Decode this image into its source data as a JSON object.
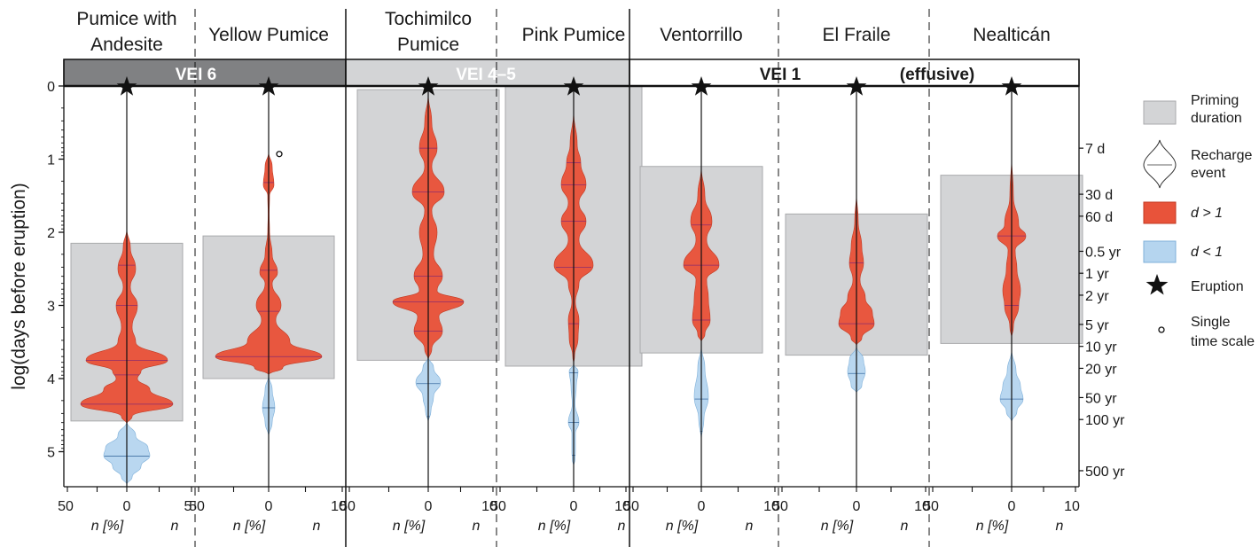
{
  "chart_data": {
    "type": "violin",
    "y_axis": {
      "label": "log(days before eruption)",
      "range": [
        0,
        5.45
      ],
      "ticks": [
        0,
        1,
        2,
        3,
        4,
        5
      ],
      "right_ticks": [
        {
          "label": "7 d",
          "value": 0.85
        },
        {
          "label": "30 d",
          "value": 1.48
        },
        {
          "label": "60 d",
          "value": 1.78
        },
        {
          "label": "0.5 yr",
          "value": 2.26
        },
        {
          "label": "1 yr",
          "value": 2.56
        },
        {
          "label": "2 yr",
          "value": 2.86
        },
        {
          "label": "5 yr",
          "value": 3.26
        },
        {
          "label": "10 yr",
          "value": 3.56
        },
        {
          "label": "20 yr",
          "value": 3.86
        },
        {
          "label": "50 yr",
          "value": 4.26
        },
        {
          "label": "100 yr",
          "value": 4.56
        },
        {
          "label": "500 yr",
          "value": 5.26
        }
      ]
    },
    "x_axis_label_left": "n [%]",
    "x_axis_label_right": "n",
    "groups": [
      {
        "label": "VEI 6",
        "style": "dark"
      },
      {
        "label": "VEI 4–5",
        "style": "light"
      },
      {
        "label": "VEI 1",
        "extra_label": "(effusive)",
        "style": "white"
      }
    ],
    "legend": {
      "priming": "Priming duration",
      "recharge": "Recharge event",
      "d_gt": "d > 1",
      "d_lt": "d < 1",
      "eruption": "Eruption",
      "single": "Single time scale"
    },
    "colors": {
      "d_gt_1": "#e8533a",
      "d_lt_1": "#b5d5ef",
      "priming": "#d3d4d6",
      "vei6": "#808183",
      "vei45": "#d3d4d6"
    },
    "panels": [
      {
        "name": "Pumice with Andesite",
        "title_lines": [
          "Pumice with",
          "Andesite"
        ],
        "ticks_left": [
          "50"
        ],
        "ticks_right": [
          "5"
        ],
        "priming": [
          2.15,
          4.58
        ],
        "red": [
          [
            1.95,
            0
          ],
          [
            2.2,
            2
          ],
          [
            2.5,
            5
          ],
          [
            2.75,
            2
          ],
          [
            3.0,
            6
          ],
          [
            3.3,
            3
          ],
          [
            3.5,
            5
          ],
          [
            3.75,
            23
          ],
          [
            3.9,
            8
          ],
          [
            4.0,
            6
          ],
          [
            4.15,
            13
          ],
          [
            4.35,
            26
          ],
          [
            4.52,
            3
          ],
          [
            4.62,
            0
          ]
        ],
        "red_lines": [
          2.45,
          3.0,
          3.75,
          3.95,
          4.35
        ],
        "blue": [
          [
            4.58,
            0
          ],
          [
            4.78,
            5
          ],
          [
            4.95,
            12
          ],
          [
            5.05,
            13
          ],
          [
            5.2,
            8
          ],
          [
            5.35,
            3
          ],
          [
            5.45,
            0
          ]
        ],
        "blue_lines": [
          5.06
        ],
        "single": null
      },
      {
        "name": "Yellow Pumice",
        "title_lines": [
          "Yellow Pumice"
        ],
        "ticks_left": [
          "50"
        ],
        "ticks_right": [
          "10"
        ],
        "priming": [
          2.05,
          4.0
        ],
        "red": [
          [
            0.9,
            0
          ],
          [
            1.1,
            2
          ],
          [
            1.35,
            3
          ],
          [
            1.5,
            0.5
          ],
          [
            1.75,
            0.3
          ],
          [
            2.0,
            0.5
          ],
          [
            2.3,
            2
          ],
          [
            2.55,
            5
          ],
          [
            2.7,
            2
          ],
          [
            3.0,
            7
          ],
          [
            3.2,
            4
          ],
          [
            3.5,
            12
          ],
          [
            3.7,
            30
          ],
          [
            3.85,
            8
          ],
          [
            3.95,
            0
          ]
        ],
        "red_lines": [
          1.32,
          2.52,
          3.08,
          3.7
        ],
        "blue": [
          [
            3.95,
            0
          ],
          [
            4.15,
            2
          ],
          [
            4.4,
            3.5
          ],
          [
            4.6,
            2
          ],
          [
            4.8,
            0
          ]
        ],
        "blue_lines": [
          4.4
        ],
        "single": 0.93
      },
      {
        "name": "Tochimilco Pumice",
        "title_lines": [
          "Tochimilco",
          "Pumice"
        ],
        "ticks_left": [
          "50"
        ],
        "ticks_right": [
          "10"
        ],
        "priming": [
          0.05,
          3.75
        ],
        "red": [
          [
            0.1,
            0
          ],
          [
            0.5,
            2
          ],
          [
            0.85,
            5
          ],
          [
            1.1,
            2
          ],
          [
            1.45,
            9
          ],
          [
            1.7,
            2
          ],
          [
            2.0,
            5
          ],
          [
            2.3,
            3
          ],
          [
            2.6,
            8
          ],
          [
            2.8,
            5
          ],
          [
            2.95,
            20
          ],
          [
            3.15,
            6
          ],
          [
            3.35,
            8
          ],
          [
            3.6,
            2
          ],
          [
            3.75,
            0
          ]
        ],
        "red_lines": [
          0.85,
          1.45,
          2.6,
          2.95,
          3.35
        ],
        "blue": [
          [
            3.7,
            0
          ],
          [
            3.85,
            3
          ],
          [
            4.05,
            7
          ],
          [
            4.25,
            3
          ],
          [
            4.45,
            1.5
          ],
          [
            4.6,
            0
          ]
        ],
        "blue_lines": [
          4.07,
          4.52
        ],
        "single": null
      },
      {
        "name": "Pink Pumice",
        "title_lines": [
          "Pink Pumice"
        ],
        "ticks_left": [
          "50"
        ],
        "ticks_right": [
          "10"
        ],
        "priming": [
          0.0,
          3.83
        ],
        "red": [
          [
            0.35,
            0
          ],
          [
            0.8,
            2
          ],
          [
            1.05,
            4
          ],
          [
            1.35,
            7
          ],
          [
            1.6,
            3
          ],
          [
            1.85,
            7
          ],
          [
            2.1,
            3
          ],
          [
            2.45,
            11
          ],
          [
            2.7,
            3
          ],
          [
            2.95,
            1
          ],
          [
            3.2,
            3
          ],
          [
            3.45,
            2.5
          ],
          [
            3.7,
            0.5
          ],
          [
            3.8,
            0
          ]
        ],
        "red_lines": [
          1.05,
          1.35,
          1.85,
          2.48,
          3.25
        ],
        "blue": [
          [
            3.8,
            0
          ],
          [
            3.9,
            2.5
          ],
          [
            4.1,
            1.5
          ],
          [
            4.35,
            0.8
          ],
          [
            4.6,
            3
          ],
          [
            4.75,
            1
          ],
          [
            5.0,
            1
          ],
          [
            5.1,
            0.8
          ],
          [
            5.2,
            0
          ]
        ],
        "blue_lines": [
          3.92,
          4.6,
          5.05
        ],
        "single": null
      },
      {
        "name": "Ventorrillo",
        "title_lines": [
          "Ventorrillo"
        ],
        "ticks_left": [
          "50"
        ],
        "ticks_right": [
          "10"
        ],
        "priming": [
          1.1,
          3.65
        ],
        "red": [
          [
            1.1,
            0
          ],
          [
            1.5,
            2
          ],
          [
            1.85,
            6
          ],
          [
            2.1,
            3
          ],
          [
            2.45,
            10
          ],
          [
            2.65,
            3
          ],
          [
            2.9,
            4
          ],
          [
            3.2,
            5
          ],
          [
            3.4,
            2
          ],
          [
            3.5,
            0
          ]
        ],
        "red_lines": [
          1.9,
          2.45,
          3.2
        ],
        "blue": [
          [
            3.55,
            0
          ],
          [
            3.85,
            2
          ],
          [
            4.25,
            4
          ],
          [
            4.55,
            1.5
          ],
          [
            4.85,
            0
          ]
        ],
        "blue_lines": [
          4.28,
          4.72
        ],
        "single": null
      },
      {
        "name": "El Fraile",
        "title_lines": [
          "El Fraile"
        ],
        "ticks_left": [
          "50"
        ],
        "ticks_right": [
          "10"
        ],
        "priming": [
          1.75,
          3.68
        ],
        "red": [
          [
            1.45,
            0
          ],
          [
            1.85,
            1
          ],
          [
            2.2,
            3
          ],
          [
            2.42,
            4
          ],
          [
            2.65,
            2
          ],
          [
            2.9,
            5
          ],
          [
            3.1,
            9
          ],
          [
            3.25,
            10
          ],
          [
            3.45,
            3
          ],
          [
            3.55,
            0
          ]
        ],
        "red_lines": [
          2.42,
          3.25
        ],
        "blue": [
          [
            3.55,
            0
          ],
          [
            3.75,
            4
          ],
          [
            3.9,
            5
          ],
          [
            4.1,
            3
          ],
          [
            4.2,
            0
          ]
        ],
        "blue_lines": [
          3.93
        ],
        "single": null
      },
      {
        "name": "Nealticán",
        "title_lines": [
          "Nealticán"
        ],
        "ticks_left": [
          "50"
        ],
        "ticks_right": [
          "10"
        ],
        "priming": [
          1.22,
          3.52
        ],
        "red": [
          [
            0.95,
            0
          ],
          [
            1.5,
            1
          ],
          [
            1.9,
            4
          ],
          [
            2.05,
            8
          ],
          [
            2.25,
            2
          ],
          [
            2.5,
            3
          ],
          [
            2.8,
            5
          ],
          [
            3.0,
            4
          ],
          [
            3.3,
            1
          ],
          [
            3.45,
            0
          ]
        ],
        "red_lines": [
          2.05,
          3.0
        ],
        "blue": [
          [
            3.6,
            0
          ],
          [
            3.9,
            2.5
          ],
          [
            4.1,
            5
          ],
          [
            4.28,
            6.5
          ],
          [
            4.45,
            3
          ],
          [
            4.6,
            0
          ]
        ],
        "blue_lines": [
          4.28
        ],
        "single": null
      }
    ]
  }
}
